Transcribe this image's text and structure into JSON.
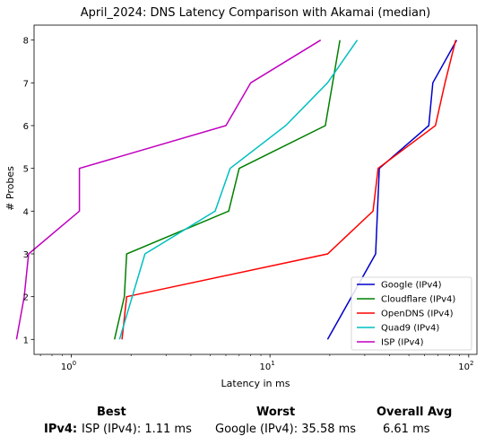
{
  "chart_data": {
    "type": "line",
    "title": "April_2024: DNS Latency Comparison with Akamai (median)",
    "xlabel": "Latency in ms",
    "ylabel": "# Probes",
    "xscale": "log",
    "xlim": [
      0.65,
      110
    ],
    "ylim": [
      0.65,
      8.35
    ],
    "x_ticks": [
      {
        "value": 1,
        "base": "10",
        "exp": "0"
      },
      {
        "value": 10,
        "base": "10",
        "exp": "1"
      },
      {
        "value": 100,
        "base": "10",
        "exp": "2"
      }
    ],
    "y_ticks": [
      "1",
      "2",
      "3",
      "4",
      "5",
      "6",
      "7",
      "8"
    ],
    "legend_position": "bottom-right",
    "grid": false,
    "series": [
      {
        "name": "Google (IPv4)",
        "color": "#0000cc",
        "points": [
          [
            19.5,
            1
          ],
          [
            34,
            3
          ],
          [
            35.5,
            5
          ],
          [
            63,
            6
          ],
          [
            66,
            7
          ],
          [
            87,
            8
          ]
        ]
      },
      {
        "name": "Cloudflare (IPv4)",
        "color": "#008000",
        "points": [
          [
            1.65,
            1
          ],
          [
            1.85,
            2
          ],
          [
            1.9,
            3
          ],
          [
            6.2,
            4
          ],
          [
            7.0,
            5
          ],
          [
            19,
            6
          ],
          [
            22.5,
            8
          ]
        ]
      },
      {
        "name": "OpenDNS (IPv4)",
        "color": "#ff0000",
        "points": [
          [
            1.8,
            1
          ],
          [
            1.9,
            2
          ],
          [
            19.5,
            3
          ],
          [
            33,
            4
          ],
          [
            35,
            5
          ],
          [
            68,
            6
          ],
          [
            76,
            7
          ],
          [
            86,
            8
          ]
        ]
      },
      {
        "name": "Quad9 (IPv4)",
        "color": "#00bfbf",
        "points": [
          [
            1.75,
            1
          ],
          [
            2.35,
            3
          ],
          [
            5.3,
            4
          ],
          [
            6.3,
            5
          ],
          [
            12,
            6
          ],
          [
            19.5,
            7
          ],
          [
            27.5,
            8
          ]
        ]
      },
      {
        "name": "ISP (IPv4)",
        "color": "#bf00bf",
        "points": [
          [
            0.53,
            1
          ],
          [
            0.58,
            2
          ],
          [
            0.61,
            3
          ],
          [
            1.1,
            4
          ],
          [
            1.1,
            5
          ],
          [
            6.0,
            6
          ],
          [
            8.0,
            7
          ],
          [
            18,
            8
          ]
        ]
      }
    ]
  },
  "summary": {
    "best_header": "Best",
    "worst_header": "Worst",
    "avg_header": "Overall Avg",
    "row_label": "IPv4:",
    "best_value": "ISP (IPv4): 1.11 ms",
    "worst_value": "Google (IPv4): 35.58 ms",
    "avg_value": "6.61 ms"
  }
}
